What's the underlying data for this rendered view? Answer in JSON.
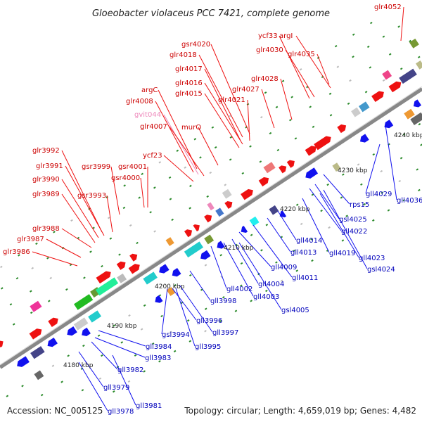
{
  "title": "Gloeobacter violaceus PCC 7421, complete genome",
  "footer": {
    "accession": "Accession: NC_005125",
    "summary": "Topology: circular; Length: 4,659,019 bp; Genes: 4,482"
  },
  "colors": {
    "forward_gene": "#ee1111",
    "reverse_gene": "#1111ee",
    "top_label": "#cc0000",
    "top_label_pink": "#ee88bb",
    "bottom_label": "#0000bb",
    "backbone": "#888888"
  },
  "kbp_ticks": [
    "4180 kbp",
    "4190 kbp",
    "4200 kbp",
    "4210 kbp",
    "4220 kbp",
    "4230 kbp",
    "4240 kbp"
  ],
  "top_labels": [
    "glr4052",
    "ycf33",
    "argI",
    "glr4030",
    "glr4035",
    "gsr4020",
    "glr4018",
    "glr4017",
    "glr4016",
    "glr4015",
    "glr4028",
    "glr4027",
    "glr4021",
    "argC",
    "glr4008",
    "gvit044",
    "glr4007",
    "murQ",
    "ycf23",
    "glr3992",
    "glr3991",
    "gsr3999",
    "gsr4001",
    "glr3990",
    "gsr4000",
    "glr3989",
    "gsr3993",
    "glr3988",
    "glr3987",
    "glr3986"
  ],
  "bottom_labels": [
    "gll4029",
    "gll4036",
    "rps15",
    "gsl4025",
    "gll4022",
    "gll4014",
    "gll4019",
    "gll4013",
    "gll4023",
    "gsl4024",
    "gll4009",
    "gll4011",
    "gll4004",
    "gll4002",
    "gll4003",
    "gll3998",
    "gsl4005",
    "gll3996",
    "gll3997",
    "gsl3994",
    "gll3995",
    "gll3984",
    "gll3983",
    "gll3982",
    "gll3979",
    "gll3981",
    "gll3978"
  ]
}
